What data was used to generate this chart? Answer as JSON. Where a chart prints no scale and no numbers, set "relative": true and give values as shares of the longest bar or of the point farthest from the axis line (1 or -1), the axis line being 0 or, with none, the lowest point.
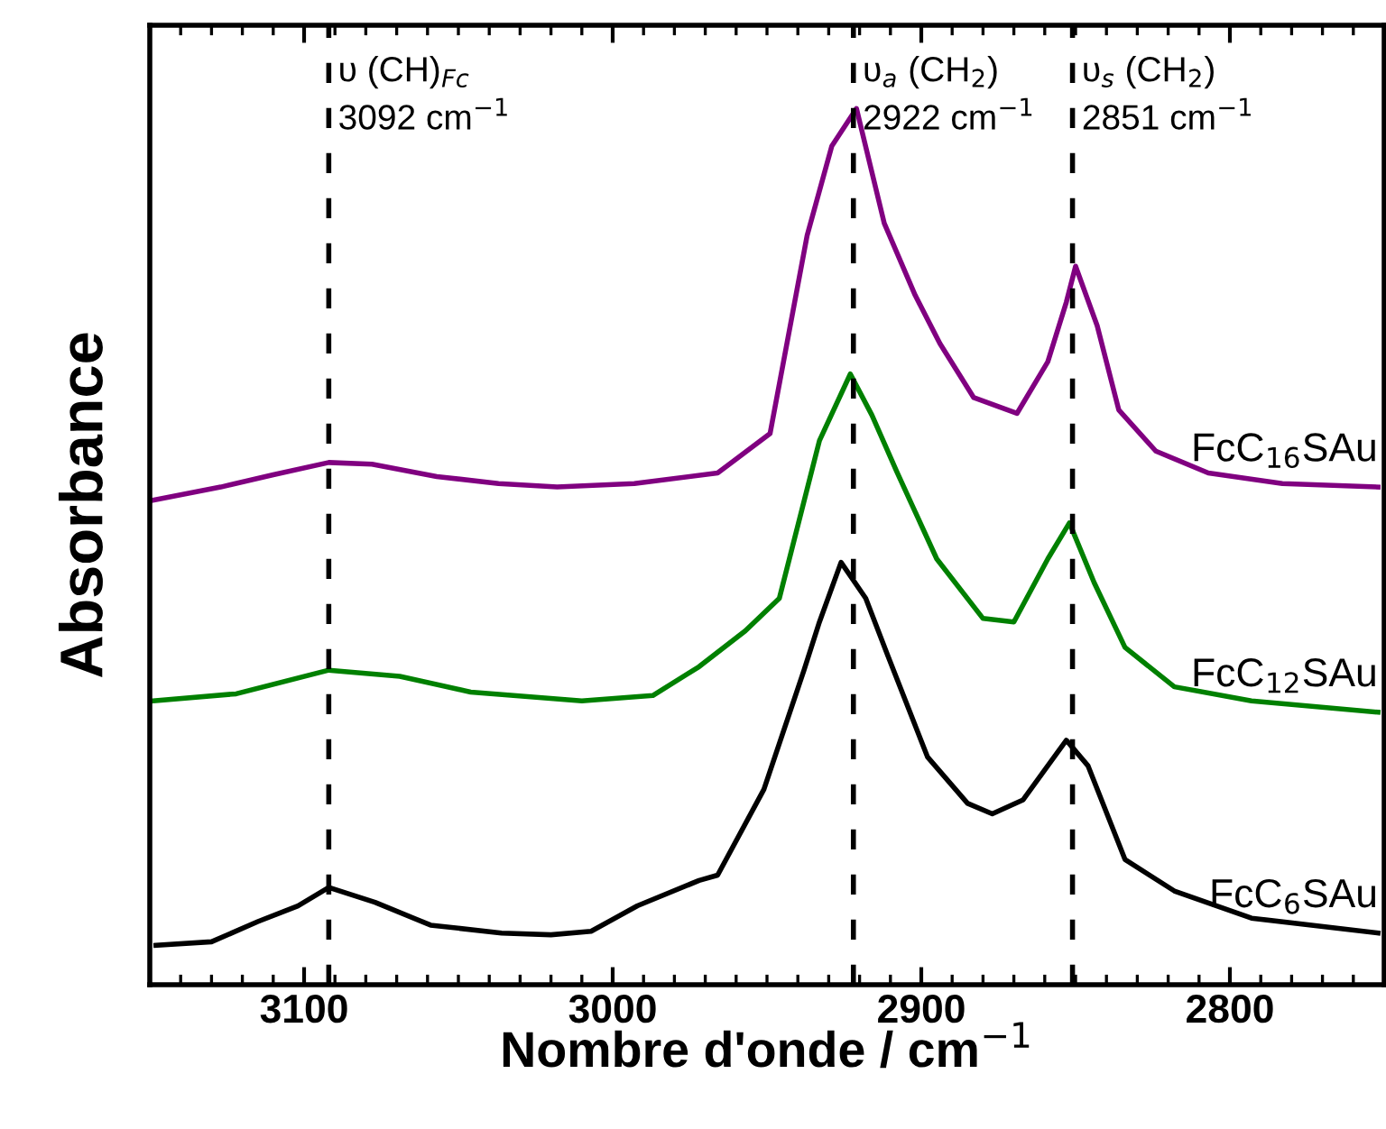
{
  "chart_data": {
    "type": "line",
    "xlabel": "Nombre d'onde / cm$^{−1}$",
    "ylabel": "Absorbance",
    "relative": true,
    "grid": false,
    "legend": false,
    "marker": "none",
    "line_style": "solid",
    "xlim": [
      3150,
      2750
    ],
    "xticks": [
      3100,
      3000,
      2900,
      2800
    ],
    "series": [
      {
        "name": "FcC$_{16}$SAu",
        "color": "#800080",
        "x": [
          3149,
          3127,
          3110,
          3092,
          3078,
          3057,
          3037,
          3018,
          2993,
          2966,
          2949,
          2937,
          2929,
          2921,
          2912,
          2902,
          2894,
          2883,
          2869,
          2859,
          2853,
          2850,
          2843,
          2836,
          2824,
          2807,
          2783,
          2752
        ],
        "values": [
          0.553,
          0.568,
          0.582,
          0.596,
          0.594,
          0.58,
          0.572,
          0.568,
          0.572,
          0.584,
          0.629,
          0.855,
          0.957,
          1.0,
          0.869,
          0.787,
          0.732,
          0.67,
          0.652,
          0.711,
          0.779,
          0.82,
          0.752,
          0.656,
          0.609,
          0.584,
          0.572,
          0.568
        ]
      },
      {
        "name": "FcC$_{12}$SAu",
        "color": "#008000",
        "x": [
          3149,
          3122,
          3092,
          3069,
          3046,
          3010,
          2987,
          2972,
          2957,
          2946,
          2933,
          2923,
          2916,
          2908,
          2895,
          2880,
          2870,
          2859,
          2852,
          2844,
          2834,
          2818,
          2793,
          2752
        ],
        "values": [
          0.324,
          0.332,
          0.359,
          0.352,
          0.334,
          0.324,
          0.33,
          0.363,
          0.404,
          0.441,
          0.621,
          0.697,
          0.65,
          0.586,
          0.486,
          0.418,
          0.414,
          0.486,
          0.527,
          0.459,
          0.385,
          0.34,
          0.324,
          0.311
        ]
      },
      {
        "name": "FcC$_{6}$SAu",
        "color": "#000000",
        "x": [
          3148,
          3130,
          3115,
          3102,
          3092,
          3077,
          3059,
          3036,
          3020,
          3007,
          2992,
          2972,
          2966,
          2951,
          2938,
          2933,
          2926,
          2918,
          2911,
          2898,
          2885,
          2877,
          2867,
          2859,
          2853,
          2846,
          2834,
          2818,
          2793,
          2752
        ],
        "values": [
          0.045,
          0.049,
          0.072,
          0.09,
          0.111,
          0.094,
          0.068,
          0.059,
          0.057,
          0.061,
          0.09,
          0.119,
          0.125,
          0.223,
          0.359,
          0.414,
          0.482,
          0.441,
          0.377,
          0.26,
          0.207,
          0.195,
          0.211,
          0.25,
          0.279,
          0.25,
          0.143,
          0.107,
          0.076,
          0.059
        ]
      }
    ],
    "ref_lines": [
      {
        "axis": "x",
        "value": 3092,
        "label": "υ (CH)$_{Fc}$\n3092 cm$^{−1}$",
        "color": "#000000",
        "line_style": "dashed"
      },
      {
        "axis": "x",
        "value": 2922,
        "label": "υ$_{a}$ (CH$_{2}$)\n2922 cm$^{−1}$",
        "color": "#000000",
        "line_style": "dashed"
      },
      {
        "axis": "x",
        "value": 2851,
        "label": "υ$_{s}$ (CH$_{2}$)\n2851 cm$^{−1}$",
        "color": "#000000",
        "line_style": "dashed"
      }
    ]
  }
}
